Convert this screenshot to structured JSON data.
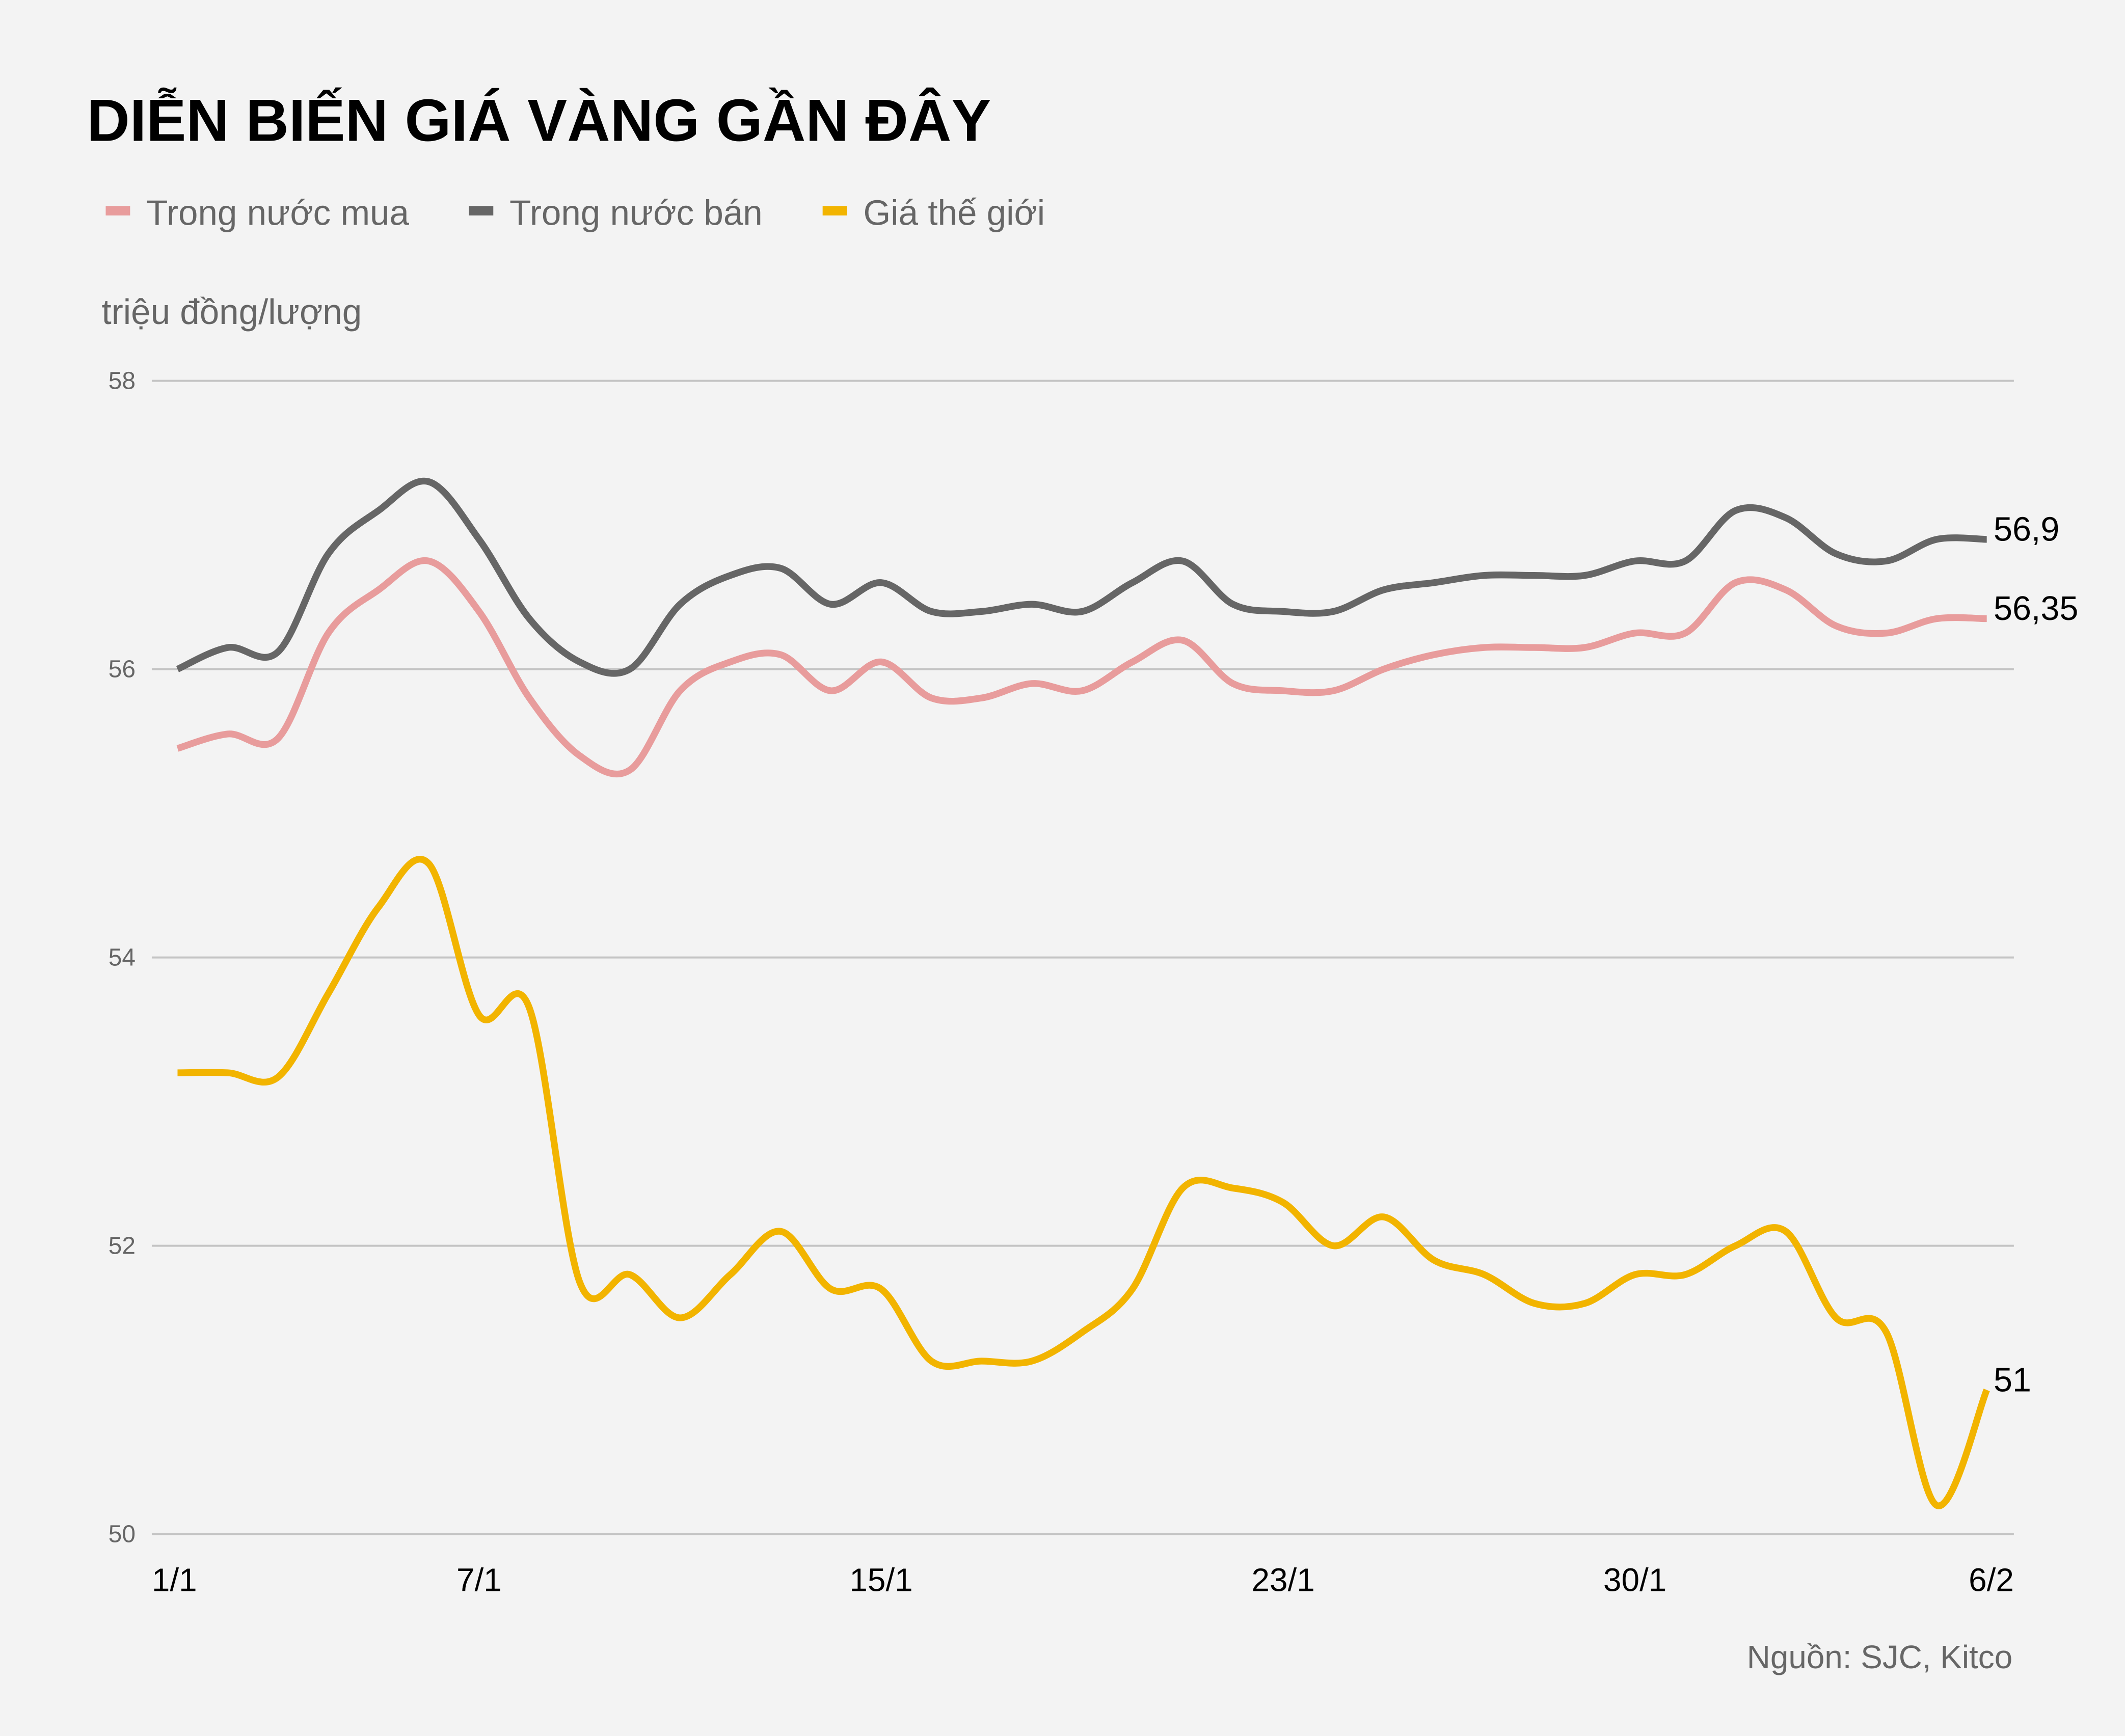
{
  "chart_data": {
    "type": "line",
    "title": "DIỄN BIẾN GIÁ VÀNG GẦN ĐÂY",
    "ylabel": "triệu đồng/lượng",
    "source": "Nguồn: SJC, Kitco",
    "ylim": [
      50,
      58
    ],
    "yticks": [
      "50",
      "52",
      "54",
      "56",
      "58"
    ],
    "ytick_values": [
      50,
      52,
      54,
      56,
      58
    ],
    "grid": true,
    "legend_position": "top-left",
    "x": [
      "1/1",
      "2/1",
      "3/1",
      "4/1",
      "5/1",
      "6/1",
      "7/1",
      "8/1",
      "9/1",
      "10/1",
      "11/1",
      "12/1",
      "13/1",
      "14/1",
      "15/1",
      "16/1",
      "17/1",
      "18/1",
      "19/1",
      "20/1",
      "21/1",
      "22/1",
      "23/1",
      "24/1",
      "25/1",
      "26/1",
      "27/1",
      "28/1",
      "29/1",
      "30/1",
      "31/1",
      "1/2",
      "2/2",
      "3/2",
      "4/2",
      "5/2",
      "6/2"
    ],
    "xticks": [
      {
        "label": "1/1",
        "index": 0
      },
      {
        "label": "7/1",
        "index": 6
      },
      {
        "label": "15/1",
        "index": 14
      },
      {
        "label": "23/1",
        "index": 22
      },
      {
        "label": "30/1",
        "index": 29
      },
      {
        "label": "6/2",
        "index": 36
      }
    ],
    "series": [
      {
        "name": "Trong nước mua",
        "color": "#E89C9C",
        "end_label": "56,35",
        "values": [
          55.45,
          55.55,
          55.52,
          56.25,
          56.55,
          56.75,
          56.4,
          55.8,
          55.4,
          55.3,
          55.85,
          56.05,
          56.1,
          55.85,
          56.05,
          55.8,
          55.8,
          55.9,
          55.85,
          56.05,
          56.2,
          55.9,
          55.85,
          55.85,
          56.0,
          56.1,
          56.15,
          56.15,
          56.15,
          56.25,
          56.25,
          56.6,
          56.55,
          56.3,
          56.25,
          56.35,
          56.35
        ]
      },
      {
        "name": "Trong nước bán",
        "color": "#666666",
        "end_label": "56,9",
        "values": [
          56.0,
          56.15,
          56.12,
          56.8,
          57.1,
          57.3,
          56.9,
          56.35,
          56.05,
          56.0,
          56.45,
          56.65,
          56.7,
          56.45,
          56.6,
          56.4,
          56.4,
          56.45,
          56.4,
          56.6,
          56.75,
          56.45,
          56.4,
          56.4,
          56.55,
          56.6,
          56.65,
          56.65,
          56.65,
          56.75,
          56.75,
          57.1,
          57.05,
          56.8,
          56.75,
          56.9,
          56.9
        ]
      },
      {
        "name": "Giá thế giới",
        "color": "#F2B400",
        "end_label": "51",
        "values": [
          53.2,
          53.2,
          53.17,
          53.75,
          54.35,
          54.65,
          53.6,
          53.65,
          51.75,
          51.8,
          51.5,
          51.8,
          52.1,
          51.7,
          51.7,
          51.2,
          51.2,
          51.2,
          51.4,
          51.7,
          52.4,
          52.4,
          52.3,
          52.0,
          52.2,
          51.9,
          51.8,
          51.6,
          51.6,
          51.8,
          51.8,
          52.0,
          52.1,
          51.5,
          51.4,
          50.2,
          51.0
        ]
      }
    ]
  }
}
